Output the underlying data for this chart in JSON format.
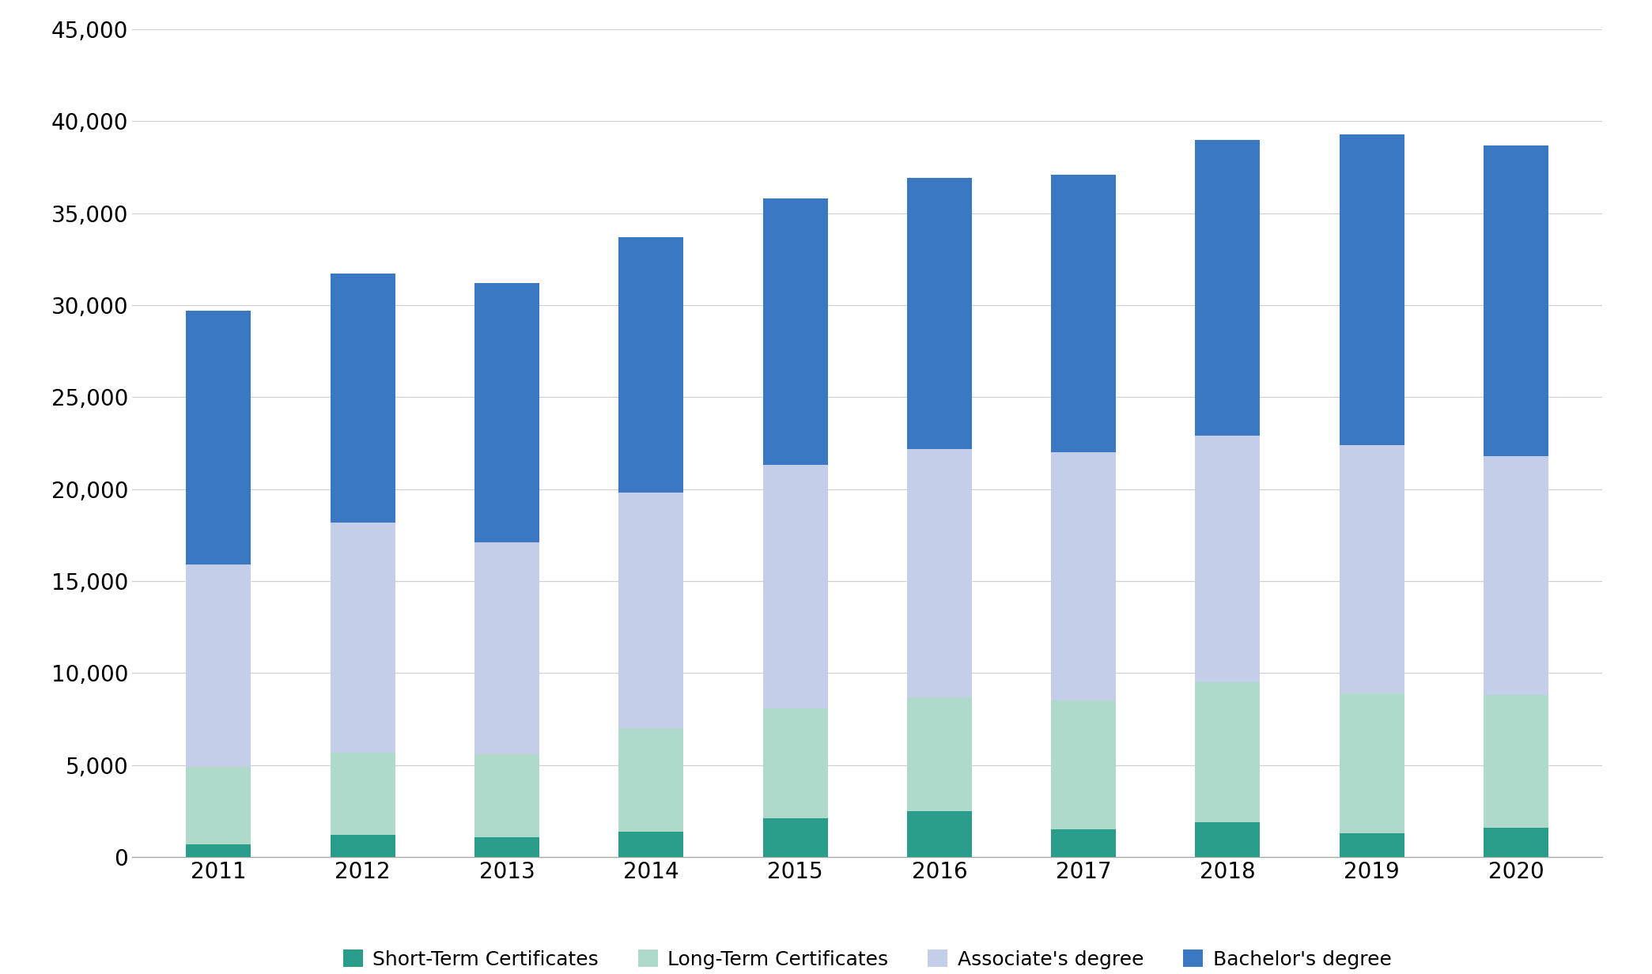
{
  "years": [
    2011,
    2012,
    2013,
    2014,
    2015,
    2016,
    2017,
    2018,
    2019,
    2020
  ],
  "short_term": [
    700,
    1200,
    1100,
    1400,
    2100,
    2500,
    1500,
    1900,
    1300,
    1600
  ],
  "long_term": [
    4200,
    4500,
    4500,
    5600,
    6000,
    6200,
    7000,
    7600,
    7600,
    7200
  ],
  "associates": [
    11000,
    12500,
    11500,
    12800,
    13200,
    13500,
    13500,
    13400,
    13500,
    13000
  ],
  "bachelors": [
    13800,
    13500,
    14100,
    13900,
    14500,
    14700,
    15100,
    16100,
    16900,
    16900
  ],
  "colors": {
    "short_term": "#2a9d8a",
    "long_term": "#aed9cb",
    "associates": "#c5cee8",
    "bachelors": "#3b78c3"
  },
  "legend_labels": [
    "Short-Term Certificates",
    "Long-Term Certificates",
    "Associate's degree",
    "Bachelor's degree"
  ],
  "ylim": [
    0,
    45000
  ],
  "yticks": [
    0,
    5000,
    10000,
    15000,
    20000,
    25000,
    30000,
    35000,
    40000,
    45000
  ],
  "background_color": "#ffffff",
  "grid_color": "#d0d0d0",
  "bar_width": 0.45
}
